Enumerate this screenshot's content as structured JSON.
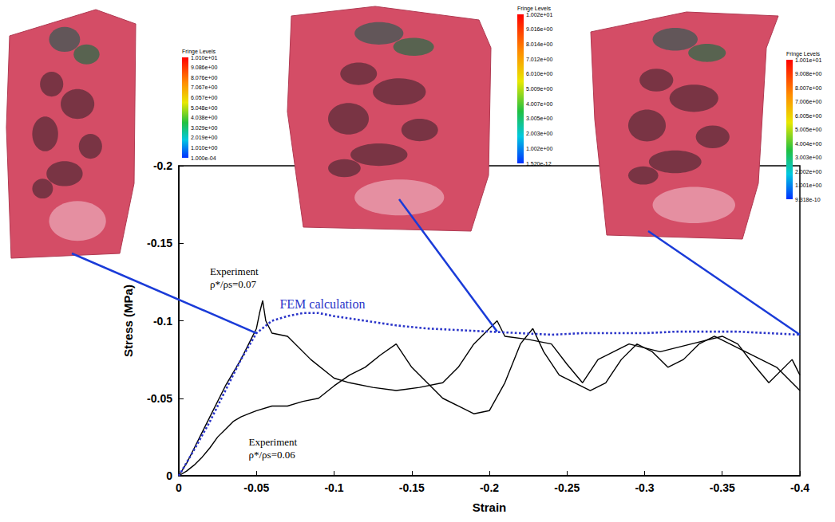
{
  "chart_data": {
    "type": "line",
    "x_label": "Strain",
    "y_label": "Stress (MPa)",
    "xlim": [
      -0.4,
      0
    ],
    "ylim": [
      -0.2,
      0
    ],
    "xticks": [
      0,
      -0.05,
      -0.1,
      -0.15,
      -0.2,
      -0.25,
      -0.3,
      -0.35,
      -0.4
    ],
    "yticks": [
      0,
      -0.05,
      -0.1,
      -0.15,
      -0.2
    ],
    "grid": false,
    "series": [
      {
        "color": "#000000",
        "line_style": "solid",
        "x": [
          0,
          -0.005,
          -0.01,
          -0.02,
          -0.03,
          -0.04,
          -0.045,
          -0.05,
          -0.052,
          -0.054,
          -0.056,
          -0.06,
          -0.07,
          -0.085,
          -0.1,
          -0.11,
          -0.125,
          -0.14,
          -0.155,
          -0.17,
          -0.18,
          -0.19,
          -0.205,
          -0.21,
          -0.225,
          -0.24,
          -0.25,
          -0.26,
          -0.27,
          -0.28,
          -0.29,
          -0.31,
          -0.33,
          -0.35,
          -0.36,
          -0.37,
          -0.38,
          -0.395,
          -0.4
        ],
        "values": [
          0,
          -0.008,
          -0.018,
          -0.038,
          -0.058,
          -0.075,
          -0.085,
          -0.095,
          -0.105,
          -0.113,
          -0.1,
          -0.092,
          -0.09,
          -0.075,
          -0.063,
          -0.06,
          -0.057,
          -0.055,
          -0.057,
          -0.06,
          -0.07,
          -0.085,
          -0.1,
          -0.09,
          -0.088,
          -0.085,
          -0.072,
          -0.06,
          -0.075,
          -0.08,
          -0.085,
          -0.08,
          -0.085,
          -0.09,
          -0.085,
          -0.072,
          -0.06,
          -0.075,
          -0.065
        ]
      },
      {
        "color": "#000000",
        "line_style": "solid",
        "x": [
          0,
          -0.005,
          -0.01,
          -0.015,
          -0.02,
          -0.025,
          -0.03,
          -0.035,
          -0.04,
          -0.045,
          -0.05,
          -0.06,
          -0.07,
          -0.08,
          -0.09,
          -0.1,
          -0.11,
          -0.12,
          -0.13,
          -0.14,
          -0.15,
          -0.16,
          -0.17,
          -0.18,
          -0.19,
          -0.2,
          -0.21,
          -0.22,
          -0.228,
          -0.235,
          -0.245,
          -0.255,
          -0.265,
          -0.275,
          -0.285,
          -0.295,
          -0.305,
          -0.315,
          -0.325,
          -0.335,
          -0.345,
          -0.355,
          -0.365,
          -0.375,
          -0.385,
          -0.395,
          -0.4
        ],
        "values": [
          0,
          -0.003,
          -0.007,
          -0.012,
          -0.018,
          -0.025,
          -0.03,
          -0.035,
          -0.038,
          -0.04,
          -0.042,
          -0.045,
          -0.045,
          -0.048,
          -0.05,
          -0.058,
          -0.065,
          -0.07,
          -0.078,
          -0.085,
          -0.07,
          -0.06,
          -0.05,
          -0.045,
          -0.04,
          -0.042,
          -0.06,
          -0.085,
          -0.095,
          -0.08,
          -0.065,
          -0.06,
          -0.055,
          -0.06,
          -0.075,
          -0.085,
          -0.08,
          -0.07,
          -0.075,
          -0.085,
          -0.09,
          -0.085,
          -0.08,
          -0.075,
          -0.07,
          -0.06,
          -0.055
        ]
      },
      {
        "color": "#2b35c9",
        "line_style": "dotted",
        "x": [
          0,
          -0.01,
          -0.02,
          -0.03,
          -0.04,
          -0.05,
          -0.06,
          -0.07,
          -0.08,
          -0.09,
          -0.1,
          -0.12,
          -0.14,
          -0.16,
          -0.18,
          -0.2,
          -0.22,
          -0.24,
          -0.26,
          -0.28,
          -0.3,
          -0.32,
          -0.34,
          -0.36,
          -0.38,
          -0.4
        ],
        "values": [
          0,
          -0.017,
          -0.035,
          -0.055,
          -0.075,
          -0.092,
          -0.1,
          -0.103,
          -0.105,
          -0.105,
          -0.103,
          -0.1,
          -0.097,
          -0.095,
          -0.094,
          -0.093,
          -0.092,
          -0.091,
          -0.092,
          -0.092,
          -0.092,
          -0.093,
          -0.093,
          -0.093,
          -0.092,
          -0.091
        ]
      }
    ],
    "annotations": [
      {
        "text": [
          "Experiment",
          "ρ*/ρs=0.07"
        ],
        "x": -0.02,
        "y": -0.135,
        "color": "#000000"
      },
      {
        "text": [
          "FEM calculation"
        ],
        "x": -0.065,
        "y": -0.115,
        "color": "#2b35c9"
      },
      {
        "text": [
          "Experiment",
          "ρ*/ρs=0.06"
        ],
        "x": -0.045,
        "y": -0.025,
        "color": "#000000"
      }
    ],
    "insets": [
      {
        "title": "Fringe Levels",
        "levels": [
          "1.010e+01",
          "9.086e+00",
          "8.076e+00",
          "7.067e+00",
          "6.057e+00",
          "5.048e+00",
          "4.038e+00",
          "3.029e+00",
          "2.019e+00",
          "1.010e+00",
          "1.000e-04"
        ],
        "points_to": [
          -0.05,
          -0.092
        ]
      },
      {
        "title": "Fringe Levels",
        "levels": [
          "1.002e+01",
          "9.016e+00",
          "8.014e+00",
          "7.012e+00",
          "6.010e+00",
          "5.009e+00",
          "4.007e+00",
          "3.005e+00",
          "2.003e+00",
          "1.002e+00",
          "1.520e-12"
        ],
        "points_to": [
          -0.205,
          -0.093
        ]
      },
      {
        "title": "Fringe Levels",
        "levels": [
          "1.001e+01",
          "9.008e+00",
          "8.007e+00",
          "7.006e+00",
          "6.005e+00",
          "5.005e+00",
          "4.004e+00",
          "3.003e+00",
          "2.002e+00",
          "1.001e+00",
          "9.318e-10"
        ],
        "points_to": [
          -0.4,
          -0.091
        ]
      }
    ]
  }
}
